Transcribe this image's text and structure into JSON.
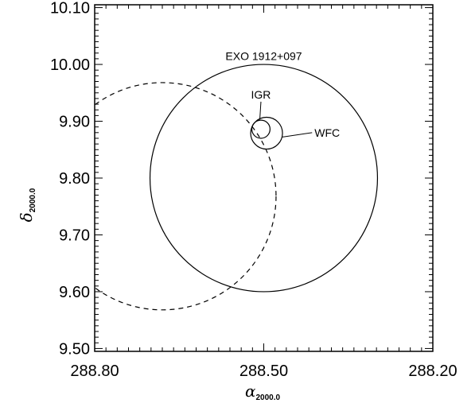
{
  "chart_data": {
    "type": "scatter",
    "xlabel": {
      "main": "α",
      "sub": "2000.0"
    },
    "ylabel": {
      "main": "δ",
      "sub": "2000.0"
    },
    "xlim": [
      288.8,
      288.2
    ],
    "ylim": [
      9.495,
      10.105
    ],
    "x_reversed": true,
    "x_ticks": [
      "288.80",
      "288.50",
      "288.20"
    ],
    "y_ticks": [
      "9.50",
      "9.60",
      "9.70",
      "9.80",
      "9.90",
      "10.00",
      "10.10"
    ],
    "minor_ticks": true,
    "grid": false,
    "circles": [
      {
        "name": "EXO 1912+097",
        "center": [
          288.5,
          9.8
        ],
        "radius_deg": 0.2,
        "line": "solid"
      },
      {
        "name": "",
        "center": [
          288.68,
          9.768
        ],
        "radius_deg": 0.2,
        "line": "dashed"
      },
      {
        "name": "IGR",
        "center": [
          288.505,
          9.886
        ],
        "radius_deg": 0.016,
        "line": "solid"
      },
      {
        "name": "WFC",
        "center": [
          288.495,
          9.879
        ],
        "radius_deg": 0.028,
        "line": "solid"
      }
    ],
    "annotations": [
      {
        "text": "EXO 1912+097",
        "at": [
          288.5,
          10.015
        ]
      },
      {
        "text": "IGR",
        "at": [
          288.505,
          9.947
        ],
        "leader_to": [
          288.507,
          9.903
        ]
      },
      {
        "text": "WFC",
        "at": [
          288.41,
          9.88
        ],
        "leader_to": [
          288.468,
          9.872
        ]
      }
    ]
  }
}
